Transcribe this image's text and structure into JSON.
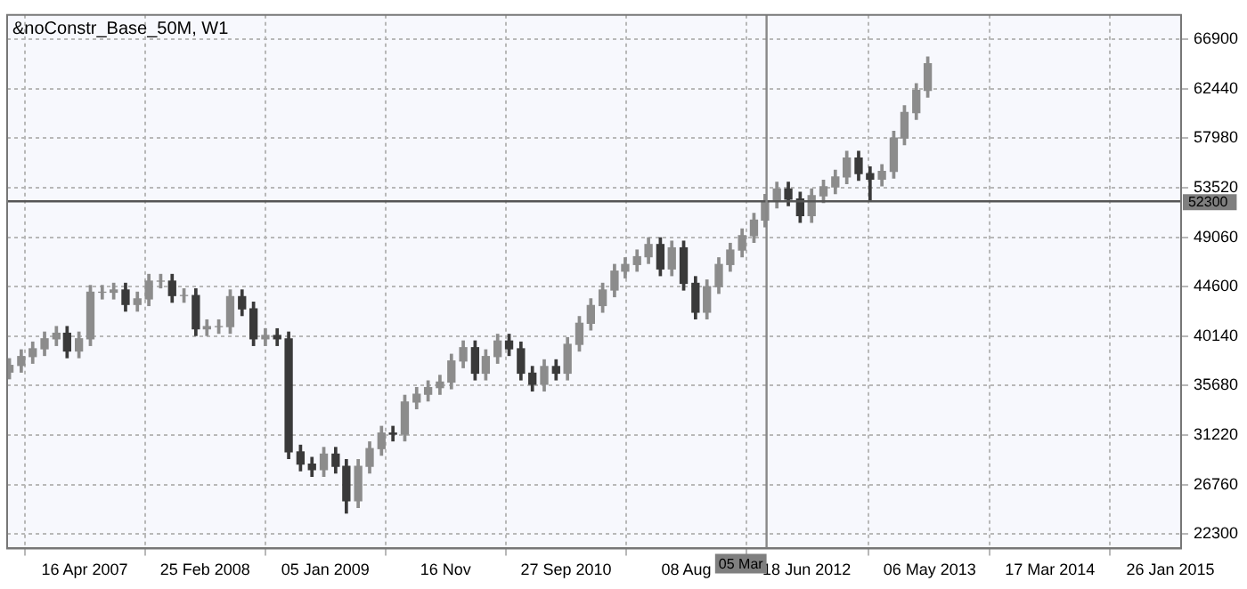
{
  "chart_data": {
    "type": "candlestick",
    "title": "&noConstr_Base_50M, W1",
    "colors": [
      "#8c8c8c",
      "#8c8c8c",
      "#8c8c8c",
      "#8c8c8c",
      "#8c8c8c",
      "#3a3a3a",
      "#8c8c8c",
      "#8c8c8c",
      "#8c8c8c",
      "#8c8c8c",
      "#3a3a3a",
      "#8c8c8c",
      "#8c8c8c",
      "#8c8c8c",
      "#3a3a3a",
      "#8c8c8c",
      "#3a3a3a",
      "#8c8c8c",
      "#8c8c8c",
      "#8c8c8c",
      "#3a3a3a",
      "#3a3a3a",
      "#8c8c8c",
      "#3a3a3a",
      "#3a3a3a",
      "#3a3a3a",
      "#3a3a3a",
      "#8c8c8c",
      "#3a3a3a",
      "#3a3a3a",
      "#8c8c8c",
      "#8c8c8c",
      "#8c8c8c",
      "#3a3a3a",
      "#8c8c8c",
      "#8c8c8c",
      "#8c8c8c",
      "#8c8c8c",
      "#8c8c8c",
      "#8c8c8c",
      "#3a3a3a",
      "#8c8c8c",
      "#8c8c8c",
      "#3a3a3a",
      "#3a3a3a",
      "#3a3a3a",
      "#8c8c8c",
      "#3a3a3a",
      "#8c8c8c",
      "#8c8c8c",
      "#8c8c8c",
      "#8c8c8c",
      "#8c8c8c",
      "#8c8c8c",
      "#8c8c8c",
      "#8c8c8c",
      "#3a3a3a",
      "#8c8c8c",
      "#3a3a3a",
      "#3a3a3a",
      "#8c8c8c",
      "#8c8c8c",
      "#8c8c8c",
      "#8c8c8c",
      "#8c8c8c",
      "#8c8c8c",
      "#8c8c8c",
      "#3a3a3a",
      "#3a3a3a",
      "#8c8c8c",
      "#8c8c8c",
      "#8c8c8c",
      "#8c8c8c",
      "#3a3a3a",
      "#3a3a3a",
      "#8c8c8c",
      "#8c8c8c",
      "#8c8c8c",
      "#8c8c8c",
      "#8c8c8c"
    ],
    "x": [
      "2006-10",
      "2006-11",
      "2006-12",
      "2007-01",
      "2007-02",
      "2007-03",
      "2007-04",
      "2007-05",
      "2007-06",
      "2007-07",
      "2007-08",
      "2007-09",
      "2007-10",
      "2007-11",
      "2007-12",
      "2008-01",
      "2008-02",
      "2008-03",
      "2008-04",
      "2008-05",
      "2008-06",
      "2008-07",
      "2008-08",
      "2008-09",
      "2008-10",
      "2008-11",
      "2008-12",
      "2009-01",
      "2009-02",
      "2009-03",
      "2009-04",
      "2009-05",
      "2009-06",
      "2009-07",
      "2009-08",
      "2009-09",
      "2009-10",
      "2009-11",
      "2009-12",
      "2010-01",
      "2010-02",
      "2010-03",
      "2010-04",
      "2010-05",
      "2010-06",
      "2010-07",
      "2010-08",
      "2010-09",
      "2010-10",
      "2010-11",
      "2010-12",
      "2011-01",
      "2011-02",
      "2011-03",
      "2011-04",
      "2011-05",
      "2011-06",
      "2011-07",
      "2011-08",
      "2011-09",
      "2011-10",
      "2011-11",
      "2011-12",
      "2012-01",
      "2012-02",
      "2012-03",
      "2012-04",
      "2012-05",
      "2012-06",
      "2012-07",
      "2012-08",
      "2012-09",
      "2012-10",
      "2012-11",
      "2012-12",
      "2013-01",
      "2013-02",
      "2013-03",
      "2013-04",
      "2013-05"
    ],
    "ohlc": [
      [
        36900,
        38100,
        36300,
        37500
      ],
      [
        37500,
        38900,
        36900,
        38300
      ],
      [
        38300,
        39600,
        37700,
        39000
      ],
      [
        39000,
        40500,
        38400,
        39900
      ],
      [
        39900,
        41000,
        39300,
        40400
      ],
      [
        40400,
        41000,
        38200,
        38800
      ],
      [
        38800,
        40500,
        38200,
        39900
      ],
      [
        39900,
        44700,
        39300,
        44100
      ],
      [
        44100,
        44700,
        43500,
        44100
      ],
      [
        44100,
        44900,
        43500,
        44300
      ],
      [
        44300,
        44900,
        42400,
        43000
      ],
      [
        43000,
        44100,
        42400,
        43500
      ],
      [
        43500,
        45700,
        42900,
        45100
      ],
      [
        45100,
        45700,
        44500,
        45100
      ],
      [
        45100,
        45700,
        43200,
        43800
      ],
      [
        43800,
        44400,
        43200,
        43800
      ],
      [
        43800,
        44400,
        40200,
        40800
      ],
      [
        40800,
        41600,
        40200,
        41000
      ],
      [
        41000,
        41600,
        40400,
        41000
      ],
      [
        41000,
        44300,
        40400,
        43700
      ],
      [
        43700,
        44300,
        42000,
        42600
      ],
      [
        42600,
        43200,
        39300,
        39900
      ],
      [
        39900,
        40800,
        39300,
        40200
      ],
      [
        40200,
        40800,
        39300,
        39900
      ],
      [
        39900,
        40500,
        29100,
        29700
      ],
      [
        29700,
        30300,
        28000,
        28600
      ],
      [
        28600,
        29200,
        27500,
        28100
      ],
      [
        28100,
        30100,
        27500,
        29500
      ],
      [
        29500,
        30100,
        27800,
        28400
      ],
      [
        28400,
        29000,
        24200,
        25300
      ],
      [
        25300,
        29000,
        24700,
        28400
      ],
      [
        28400,
        30600,
        27800,
        30000
      ],
      [
        30000,
        32000,
        29400,
        31400
      ],
      [
        31400,
        32000,
        30700,
        31300
      ],
      [
        31300,
        34800,
        30700,
        34200
      ],
      [
        34200,
        35500,
        33600,
        34900
      ],
      [
        34900,
        36100,
        34300,
        35500
      ],
      [
        35500,
        36600,
        34900,
        36000
      ],
      [
        36000,
        38500,
        35400,
        37900
      ],
      [
        37900,
        39700,
        37300,
        39100
      ],
      [
        39100,
        39700,
        36200,
        36800
      ],
      [
        36800,
        38900,
        36200,
        38300
      ],
      [
        38300,
        40300,
        37700,
        39700
      ],
      [
        39700,
        40300,
        38400,
        39000
      ],
      [
        39000,
        39600,
        36200,
        36800
      ],
      [
        36800,
        37400,
        35200,
        35800
      ],
      [
        35800,
        38000,
        35200,
        37400
      ],
      [
        37400,
        38000,
        36200,
        36800
      ],
      [
        36800,
        40000,
        36200,
        39400
      ],
      [
        39400,
        41900,
        38800,
        41300
      ],
      [
        41300,
        43500,
        40700,
        42900
      ],
      [
        42900,
        44900,
        42300,
        44300
      ],
      [
        44300,
        46600,
        43700,
        46000
      ],
      [
        46000,
        47200,
        45400,
        46600
      ],
      [
        46600,
        47900,
        46000,
        47300
      ],
      [
        47300,
        49000,
        46700,
        48400
      ],
      [
        48400,
        49000,
        45600,
        46200
      ],
      [
        46200,
        48700,
        45600,
        48100
      ],
      [
        48100,
        48700,
        44300,
        44900
      ],
      [
        44900,
        45500,
        41700,
        42300
      ],
      [
        42300,
        45200,
        41700,
        44600
      ],
      [
        44600,
        47200,
        44000,
        46600
      ],
      [
        46600,
        48500,
        46000,
        47900
      ],
      [
        47900,
        49800,
        47300,
        49200
      ],
      [
        49200,
        51200,
        48600,
        50600
      ],
      [
        50600,
        52900,
        50000,
        52300
      ],
      [
        52300,
        54000,
        51700,
        53400
      ],
      [
        53400,
        54000,
        51900,
        52500
      ],
      [
        52500,
        53100,
        50400,
        51000
      ],
      [
        51000,
        53400,
        50400,
        52800
      ],
      [
        52800,
        54200,
        52200,
        53600
      ],
      [
        53600,
        55100,
        53000,
        54500
      ],
      [
        54500,
        56800,
        53900,
        56200
      ],
      [
        56200,
        56800,
        54200,
        54800
      ],
      [
        54800,
        55400,
        52300,
        54300
      ],
      [
        54300,
        55600,
        53700,
        55000
      ],
      [
        55000,
        58600,
        54400,
        58000
      ],
      [
        58000,
        60900,
        57400,
        60300
      ],
      [
        60300,
        62900,
        59700,
        62300
      ],
      [
        62300,
        65300,
        61700,
        64700
      ]
    ],
    "xlim": [
      "2006-09-25",
      "2015-02-23"
    ],
    "xticks": [
      {
        "value": "2007-04-16",
        "label": "16 Apr 2007"
      },
      {
        "value": "2008-02-25",
        "label": "25 Feb 2008"
      },
      {
        "value": "2009-01-05",
        "label": "05 Jan 2009"
      },
      {
        "value": "2009-11-16",
        "label": "16 Nov"
      },
      {
        "value": "2010-09-27",
        "label": "27 Sep 2010"
      },
      {
        "value": "2011-08-08",
        "label": "08 Aug"
      },
      {
        "value": "2012-06-18",
        "label": "18 Jun 2012"
      },
      {
        "value": "2013-05-06",
        "label": "06 May 2013"
      },
      {
        "value": "2014-03-17",
        "label": "17 Mar 2014"
      },
      {
        "value": "2015-01-26",
        "label": "26 Jan 2015"
      }
    ],
    "ylim": [
      21000,
      69100
    ],
    "yticks": [
      22300,
      26760,
      31220,
      35680,
      40140,
      44600,
      49060,
      53520,
      57980,
      62440,
      66900
    ],
    "grid": true,
    "ref_lines": [
      {
        "axis": "y",
        "value": 52300,
        "label": "52300",
        "color": "#555555"
      },
      {
        "axis": "x",
        "value": "2012-03-05",
        "label": "05 Mar",
        "color": "#888888"
      }
    ]
  }
}
